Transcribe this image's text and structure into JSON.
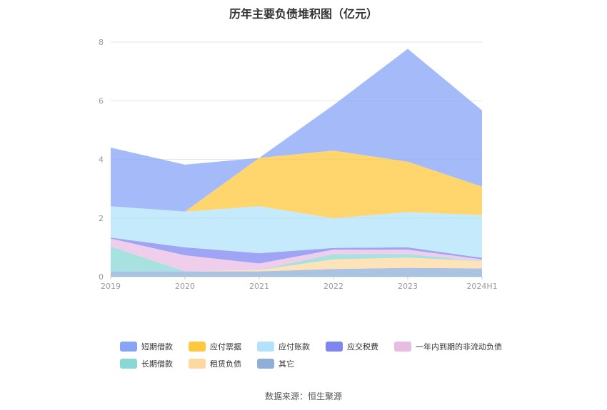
{
  "chart_data": {
    "type": "area",
    "title": "历年主要负债堆积图（亿元）",
    "categories": [
      "2019",
      "2020",
      "2021",
      "2022",
      "2023",
      "2024H1"
    ],
    "ylim": [
      0,
      8
    ],
    "yticks": [
      "0",
      "2",
      "4",
      "6",
      "8"
    ],
    "stacked": true,
    "grid": true,
    "legend_position": "bottom",
    "series": [
      {
        "name": "其它",
        "color": "#8fafd9",
        "values": [
          0.18,
          0.18,
          0.18,
          0.26,
          0.3,
          0.28
        ]
      },
      {
        "name": "租赁负债",
        "color": "#fdd8a0",
        "values": [
          0,
          0,
          0.05,
          0.33,
          0.35,
          0.25
        ]
      },
      {
        "name": "长期借款",
        "color": "#8ad8d6",
        "values": [
          0.85,
          0,
          0,
          0.18,
          0.12,
          0
        ]
      },
      {
        "name": "一年内到期的非流动负债",
        "color": "#e8bde3",
        "values": [
          0.27,
          0.55,
          0.22,
          0.15,
          0.15,
          0.06
        ]
      },
      {
        "name": "应交税费",
        "color": "#7f86f0",
        "values": [
          0.03,
          0.27,
          0.35,
          0.06,
          0.08,
          0.05
        ]
      },
      {
        "name": "应付账款",
        "color": "#b2e3fa",
        "values": [
          1.07,
          1.22,
          1.6,
          1.01,
          1.2,
          1.46
        ]
      },
      {
        "name": "应付票据",
        "color": "#ffc83e",
        "values": [
          0,
          0,
          1.65,
          2.31,
          1.72,
          0.97
        ]
      },
      {
        "name": "短期借款",
        "color": "#87a4f7",
        "values": [
          2.0,
          1.6,
          0,
          1.55,
          3.85,
          2.6
        ]
      }
    ],
    "legend_order": [
      "短期借款",
      "应付票据",
      "应付账款",
      "应交税费",
      "一年内到期的非流动负债",
      "长期借款",
      "租赁负债",
      "其它"
    ]
  },
  "legend": {
    "row1": [
      {
        "label": "短期借款",
        "color": "#87a4f7"
      },
      {
        "label": "应付票据",
        "color": "#ffc83e"
      },
      {
        "label": "应付账款",
        "color": "#b2e3fa"
      },
      {
        "label": "应交税费",
        "color": "#7f86f0"
      },
      {
        "label": "一年内到期的非流动负债",
        "color": "#e8bde3"
      }
    ],
    "row2": [
      {
        "label": "长期借款",
        "color": "#8ad8d6"
      },
      {
        "label": "租赁负债",
        "color": "#fdd8a0"
      },
      {
        "label": "其它",
        "color": "#8fafd9"
      }
    ]
  },
  "footer": {
    "source": "数据来源：恒生聚源"
  }
}
